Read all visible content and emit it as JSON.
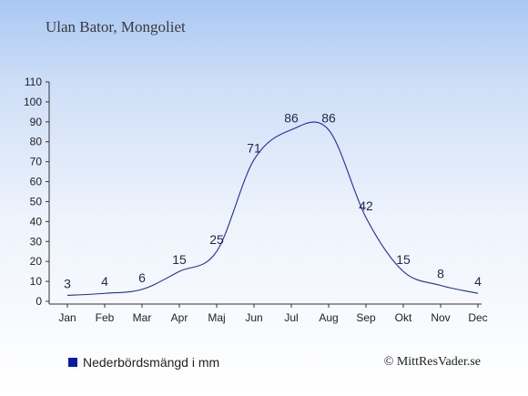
{
  "chart_data": {
    "type": "line",
    "title": "Ulan Bator, Mongoliet",
    "categories": [
      "Jan",
      "Feb",
      "Mar",
      "Apr",
      "Maj",
      "Jun",
      "Jul",
      "Aug",
      "Sep",
      "Okt",
      "Nov",
      "Dec"
    ],
    "series": [
      {
        "name": "Nederbördsmängd i mm",
        "values": [
          3,
          4,
          6,
          15,
          25,
          71,
          86,
          86,
          42,
          15,
          8,
          4
        ],
        "color": "#1a2ea0"
      }
    ],
    "ylim": [
      0,
      110
    ],
    "yticks": [
      0,
      10,
      20,
      30,
      40,
      50,
      60,
      70,
      80,
      90,
      100,
      110
    ],
    "xlabel": "",
    "ylabel": "",
    "grid": false,
    "legend_position": "bottom-left"
  },
  "legend": {
    "label": "Nederbördsmängd i mm",
    "color": "#0a1aa8"
  },
  "credit": "© MittResVader.se"
}
